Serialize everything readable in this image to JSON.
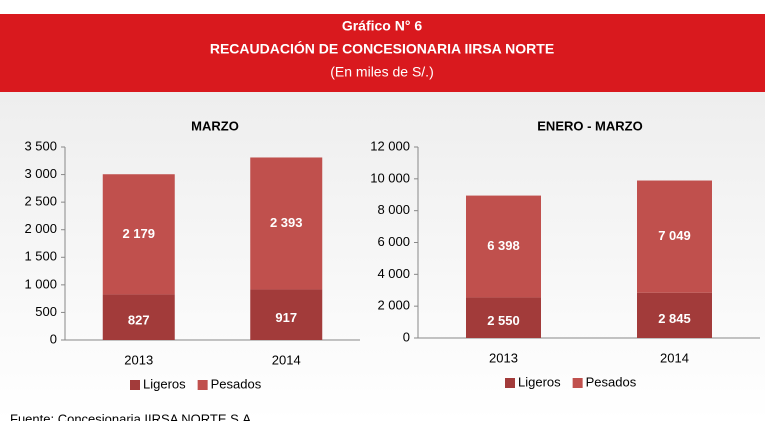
{
  "header": {
    "title": "Gráfico N° 6",
    "subtitle": "RECAUDACIÓN DE CONCESIONARIA IIRSA NORTE",
    "unit": "(En miles de S/.)"
  },
  "chart_data": [
    {
      "type": "bar",
      "stacked": true,
      "title": "MARZO",
      "categories": [
        "2013",
        "2014"
      ],
      "series": [
        {
          "name": "Ligeros",
          "color": "#a23b3a",
          "values": [
            827,
            917
          ],
          "value_labels": [
            "827",
            "917"
          ]
        },
        {
          "name": "Pesados",
          "color": "#c0504d",
          "values": [
            2179,
            2393
          ],
          "value_labels": [
            "2 179",
            "2 393"
          ]
        }
      ],
      "ylim": [
        0,
        3500
      ],
      "yticks": [
        0,
        500,
        {
          "value": 1000,
          "label": "1 000"
        },
        {
          "value": 1500,
          "label": "1 500"
        },
        {
          "value": 2000,
          "label": "2 000"
        },
        {
          "value": 2500,
          "label": "2 500"
        },
        {
          "value": 3000,
          "label": "3 000"
        },
        {
          "value": 3500,
          "label": "3 500"
        }
      ],
      "grid": false,
      "legend": "bottom"
    },
    {
      "type": "bar",
      "stacked": true,
      "title": "ENERO - MARZO",
      "categories": [
        "2013",
        "2014"
      ],
      "series": [
        {
          "name": "Ligeros",
          "color": "#a23b3a",
          "values": [
            2550,
            2845
          ],
          "value_labels": [
            "2 550",
            "2 845"
          ]
        },
        {
          "name": "Pesados",
          "color": "#c0504d",
          "values": [
            6398,
            7049
          ],
          "value_labels": [
            "6 398",
            "7 049"
          ]
        }
      ],
      "ylim": [
        0,
        12000
      ],
      "yticks": [
        0,
        {
          "value": 2000,
          "label": "2 000"
        },
        {
          "value": 4000,
          "label": "4 000"
        },
        {
          "value": 6000,
          "label": "6 000"
        },
        {
          "value": 8000,
          "label": "8 000"
        },
        {
          "value": 10000,
          "label": "10 000"
        },
        {
          "value": 12000,
          "label": "12 000"
        }
      ],
      "grid": false,
      "legend": "bottom"
    }
  ],
  "source": "Fuente: Concesionaria IIRSA NORTE S.A."
}
